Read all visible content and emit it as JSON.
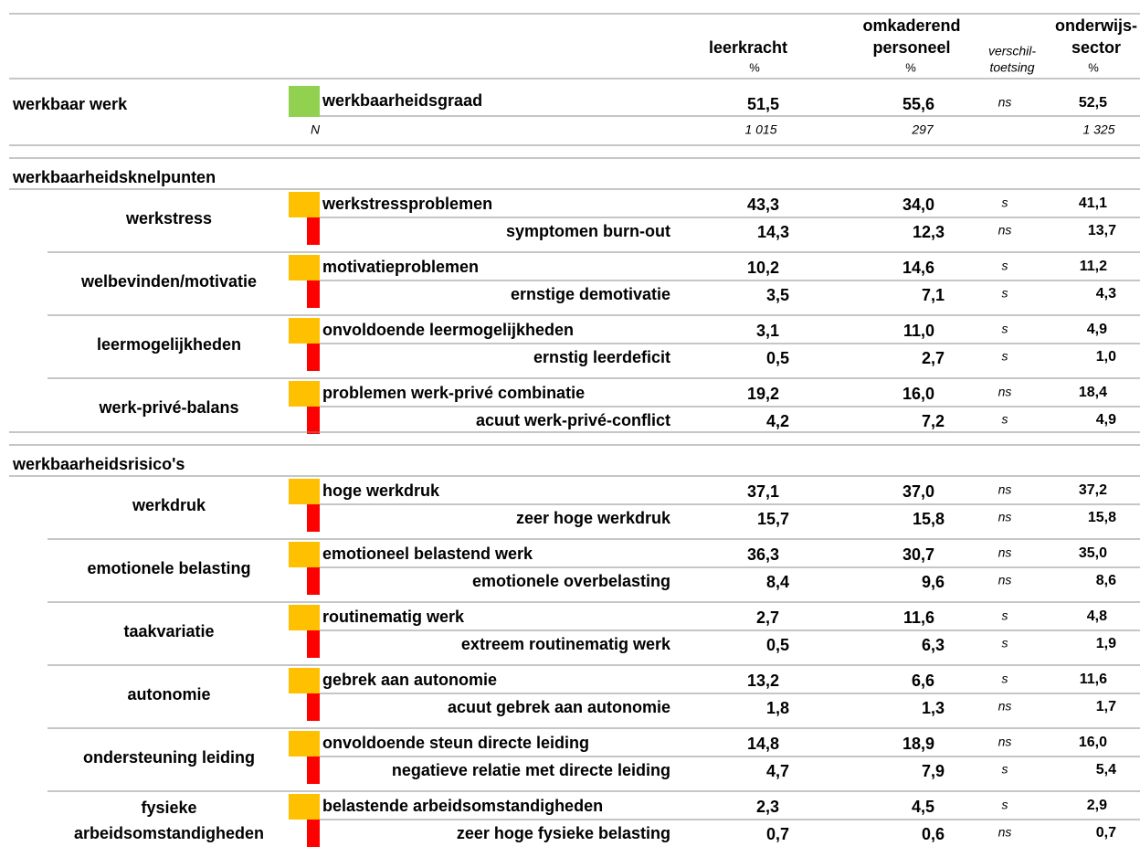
{
  "columns": [
    {
      "lines": [
        "leerkracht"
      ],
      "unit": "%"
    },
    {
      "lines": [
        "omkaderend",
        "personeel"
      ],
      "unit": "%"
    },
    {
      "lines": [
        "verschil-",
        "toetsing"
      ]
    },
    {
      "lines": [
        "onderwijs-",
        "sector"
      ],
      "unit": "%"
    }
  ],
  "werkbaar": {
    "title": "werkbaar werk",
    "label": "werkbaarheidsgraad",
    "values": [
      "51,5",
      "55,6",
      "ns",
      "52,5"
    ],
    "n": {
      "label": "N",
      "values": [
        "1 015",
        "297",
        "1 325"
      ]
    }
  },
  "sections": [
    {
      "title": "werkbaarheidsknelpunten",
      "groups": [
        {
          "name": [
            "werkstress"
          ],
          "rows": [
            {
              "label": "werkstressproblemen",
              "values": [
                "43,3",
                "34,0",
                "s",
                "41,1"
              ]
            },
            {
              "label": "symptomen burn-out",
              "values": [
                "14,3",
                "12,3",
                "ns",
                "13,7"
              ]
            }
          ]
        },
        {
          "name": [
            "welbevinden/motivatie"
          ],
          "rows": [
            {
              "label": "motivatieproblemen",
              "values": [
                "10,2",
                "14,6",
                "s",
                "11,2"
              ]
            },
            {
              "label": "ernstige demotivatie",
              "values": [
                "3,5",
                "7,1",
                "s",
                "4,3"
              ]
            }
          ]
        },
        {
          "name": [
            "leermogelijkheden"
          ],
          "rows": [
            {
              "label": "onvoldoende leermogelijkheden",
              "values": [
                "3,1",
                "11,0",
                "s",
                "4,9"
              ]
            },
            {
              "label": "ernstig leerdeficit",
              "values": [
                "0,5",
                "2,7",
                "s",
                "1,0"
              ]
            }
          ]
        },
        {
          "name": [
            "werk-privé-balans"
          ],
          "rows": [
            {
              "label": "problemen werk-privé combinatie",
              "values": [
                "19,2",
                "16,0",
                "ns",
                "18,4"
              ]
            },
            {
              "label": "acuut werk-privé-conflict",
              "values": [
                "4,2",
                "7,2",
                "s",
                "4,9"
              ]
            }
          ]
        }
      ]
    },
    {
      "title": "werkbaarheidsrisico's",
      "groups": [
        {
          "name": [
            "werkdruk"
          ],
          "rows": [
            {
              "label": "hoge werkdruk",
              "values": [
                "37,1",
                "37,0",
                "ns",
                "37,2"
              ]
            },
            {
              "label": "zeer hoge werkdruk",
              "values": [
                "15,7",
                "15,8",
                "ns",
                "15,8"
              ]
            }
          ]
        },
        {
          "name": [
            "emotionele belasting"
          ],
          "rows": [
            {
              "label": "emotioneel belastend werk",
              "values": [
                "36,3",
                "30,7",
                "ns",
                "35,0"
              ]
            },
            {
              "label": "emotionele overbelasting",
              "values": [
                "8,4",
                "9,6",
                "ns",
                "8,6"
              ]
            }
          ]
        },
        {
          "name": [
            "taakvariatie"
          ],
          "rows": [
            {
              "label": "routinematig werk",
              "values": [
                "2,7",
                "11,6",
                "s",
                "4,8"
              ]
            },
            {
              "label": "extreem routinematig werk",
              "values": [
                "0,5",
                "6,3",
                "s",
                "1,9"
              ]
            }
          ]
        },
        {
          "name": [
            "autonomie"
          ],
          "rows": [
            {
              "label": "gebrek aan autonomie",
              "values": [
                "13,2",
                "6,6",
                "s",
                "11,6"
              ]
            },
            {
              "label": "acuut gebrek aan autonomie",
              "values": [
                "1,8",
                "1,3",
                "ns",
                "1,7"
              ]
            }
          ]
        },
        {
          "name": [
            "ondersteuning leiding"
          ],
          "rows": [
            {
              "label": "onvoldoende steun directe leiding",
              "values": [
                "14,8",
                "18,9",
                "ns",
                "16,0"
              ]
            },
            {
              "label": "negatieve relatie met directe leiding",
              "values": [
                "4,7",
                "7,9",
                "s",
                "5,4"
              ]
            }
          ]
        },
        {
          "name": [
            "fysieke",
            "arbeidsomstandigheden"
          ],
          "rows": [
            {
              "label": "belastende arbeidsomstandigheden",
              "values": [
                "2,3",
                "4,5",
                "s",
                "2,9"
              ]
            },
            {
              "label": "zeer hoge fysieke belasting",
              "values": [
                "0,7",
                "0,6",
                "ns",
                "0,7"
              ]
            }
          ]
        }
      ]
    }
  ]
}
